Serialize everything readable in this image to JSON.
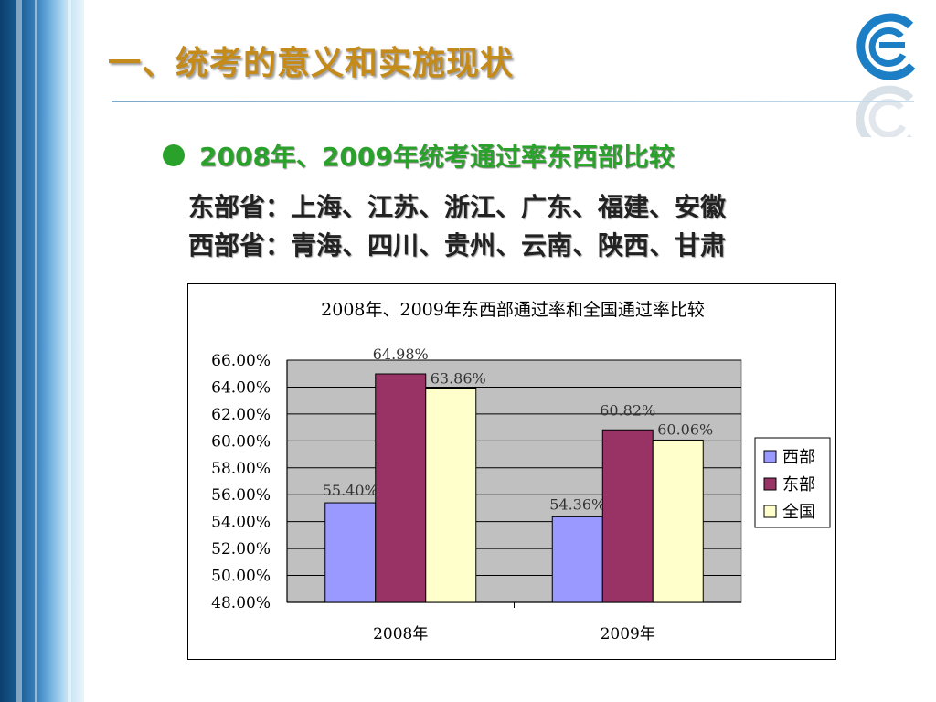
{
  "header": {
    "title": "一、统考的意义和实施现状"
  },
  "bullet": {
    "text": "2008年、2009年统考通过率东西部比较"
  },
  "provinces": {
    "east": "东部省：上海、江苏、浙江、广东、福建、安徽",
    "west": "西部省：青海、四川、贵州、云南、陕西、甘肃"
  },
  "chart_data": {
    "type": "bar",
    "title": "2008年、2009年东西部通过率和全国通过率比较",
    "categories": [
      "2008年",
      "2009年"
    ],
    "series": [
      {
        "name": "西部",
        "values": [
          55.4,
          54.36
        ],
        "color": "#9999ff"
      },
      {
        "name": "东部",
        "values": [
          64.98,
          60.82
        ],
        "color": "#993366"
      },
      {
        "name": "全国",
        "values": [
          63.86,
          60.06
        ],
        "color": "#ffffcc"
      }
    ],
    "data_labels": [
      [
        "55.40%",
        "54.36%"
      ],
      [
        "64.98%",
        "60.82%"
      ],
      [
        "63.86%",
        "60.06%"
      ]
    ],
    "yticks": [
      "48.00%",
      "50.00%",
      "52.00%",
      "54.00%",
      "56.00%",
      "58.00%",
      "60.00%",
      "62.00%",
      "64.00%",
      "66.00%"
    ],
    "ylim": [
      48,
      66
    ],
    "grid": true,
    "plot_background": "#c0c0c0",
    "legend_position": "right"
  }
}
